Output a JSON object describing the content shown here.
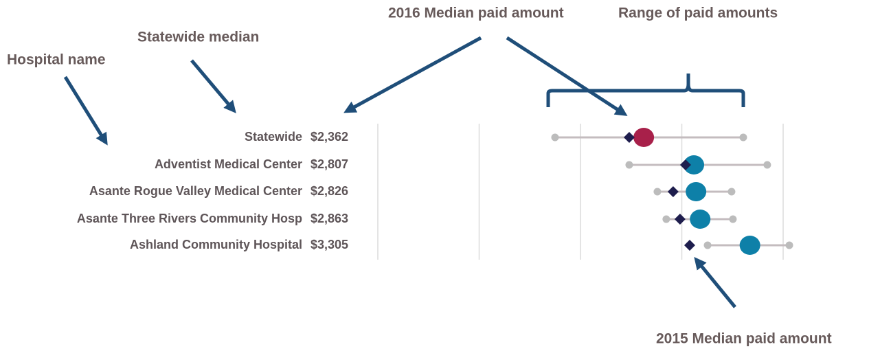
{
  "chart_data": {
    "type": "dot_range",
    "annotations": [
      "Hospital name",
      "Statewide median",
      "2016 Median paid amount",
      "Range of paid amounts",
      "2015 Median paid amount"
    ],
    "categories": [
      "Statewide",
      "Adventist Medical Center",
      "Asante Rogue Valley Medical Center",
      "Asante Three Rivers Community Hosp",
      "Ashland Community Hospital"
    ],
    "median_2016": [
      2362,
      2807,
      2826,
      2863,
      3305
    ],
    "value_labels": [
      "$2,362",
      "$2,807",
      "$2,826",
      "$2,863",
      "$3,305"
    ],
    "median_2015": [
      2233,
      2733,
      2623,
      2684,
      2770
    ],
    "min": [
      1574,
      2233,
      2483,
      2562,
      2929
    ],
    "max": [
      3246,
      3459,
      3142,
      3154,
      3655
    ],
    "colors": [
      "#a8204a",
      "#0e80a8",
      "#0e80a8",
      "#0e80a8",
      "#0e80a8"
    ],
    "median_2015_color": "#1e1d4d",
    "range_color": "#c4bcbf",
    "end_color": "#bcbcbc",
    "xlim": [
      0,
      3600
    ],
    "xticks": [
      0,
      900,
      1800,
      2700,
      3600
    ],
    "grid": true
  }
}
